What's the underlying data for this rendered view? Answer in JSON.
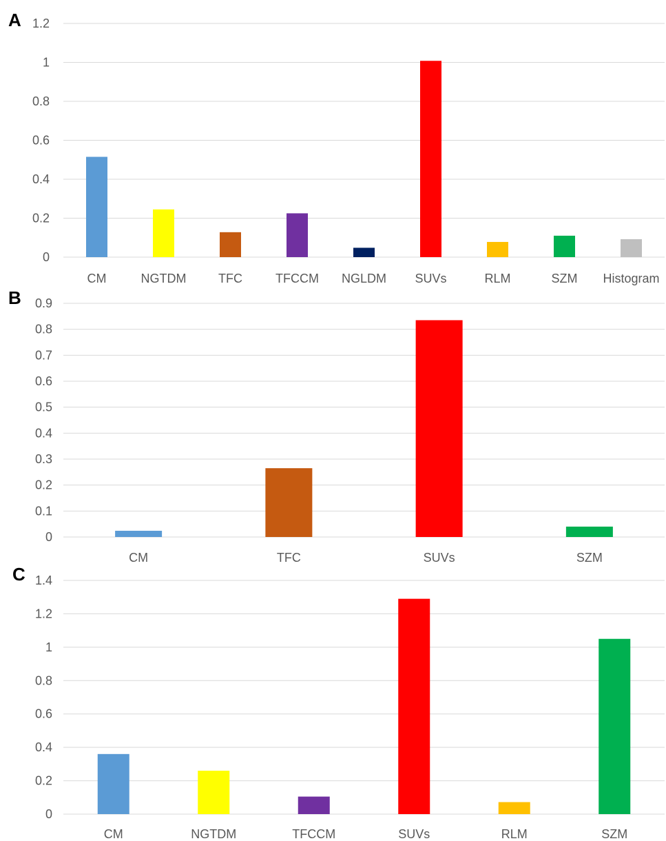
{
  "chart_data": [
    {
      "panel_label": "A",
      "type": "bar",
      "categories": [
        "CM",
        "NGTDM",
        "TFC",
        "TFCCM",
        "NGLDM",
        "SUVs",
        "RLM",
        "SZM",
        "Histogram"
      ],
      "values": [
        0.515,
        0.245,
        0.128,
        0.225,
        0.048,
        1.008,
        0.078,
        0.11,
        0.092
      ],
      "colors": [
        "#5b9bd5",
        "#ffff00",
        "#c55a11",
        "#7030a0",
        "#002060",
        "#ff0000",
        "#ffc000",
        "#00b050",
        "#bfbfbf"
      ],
      "ylim": [
        0,
        1.2
      ],
      "yticks": [
        "0",
        "0.2",
        "0.4",
        "0.6",
        "0.8",
        "1",
        "1.2"
      ],
      "grid": true
    },
    {
      "panel_label": "B",
      "type": "bar",
      "categories": [
        "CM",
        "TFC",
        "SUVs",
        "SZM"
      ],
      "values": [
        0.024,
        0.265,
        0.835,
        0.04
      ],
      "colors": [
        "#5b9bd5",
        "#c55a11",
        "#ff0000",
        "#00b050"
      ],
      "ylim": [
        0,
        0.9
      ],
      "yticks": [
        "0",
        "0.1",
        "0.2",
        "0.3",
        "0.4",
        "0.5",
        "0.6",
        "0.7",
        "0.8",
        "0.9"
      ],
      "grid": true
    },
    {
      "panel_label": "C",
      "type": "bar",
      "categories": [
        "CM",
        "NGTDM",
        "TFCCM",
        "SUVs",
        "RLM",
        "SZM"
      ],
      "values": [
        0.36,
        0.26,
        0.105,
        1.29,
        0.072,
        1.05
      ],
      "colors": [
        "#5b9bd5",
        "#ffff00",
        "#7030a0",
        "#ff0000",
        "#ffc000",
        "#00b050"
      ],
      "ylim": [
        0,
        1.4
      ],
      "yticks": [
        "0",
        "0.2",
        "0.4",
        "0.6",
        "0.8",
        "1",
        "1.2",
        "1.4"
      ],
      "grid": true
    }
  ]
}
